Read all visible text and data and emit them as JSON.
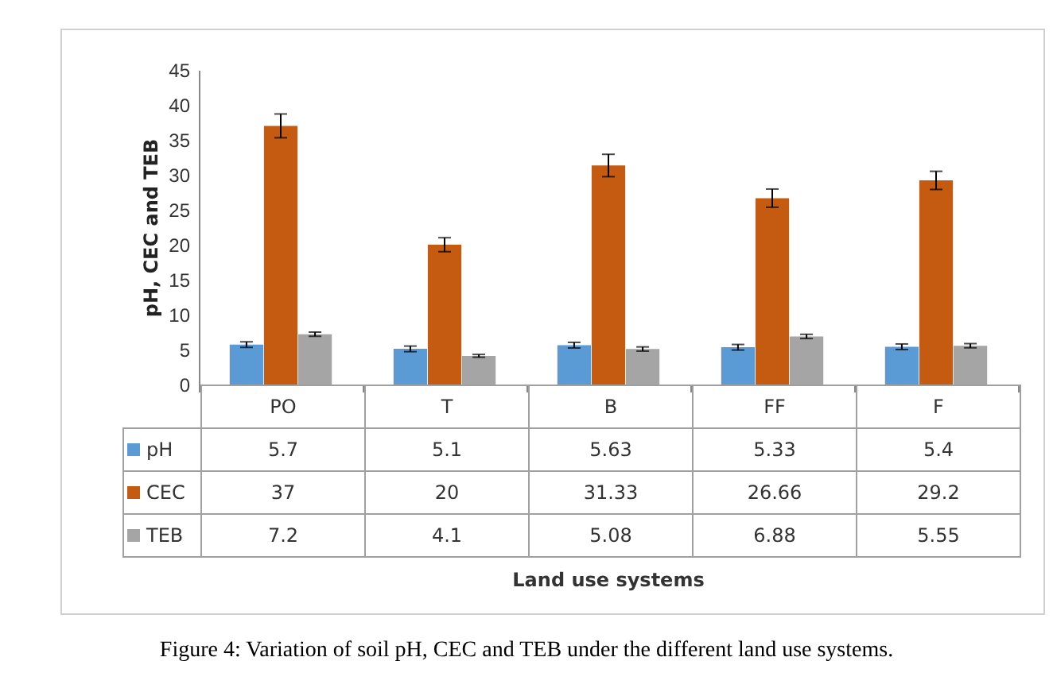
{
  "chart_data": {
    "type": "bar",
    "ylabel": "pH, CEC and TEB",
    "categories": [
      "PO",
      "T",
      "B",
      "FF",
      "F"
    ],
    "series": [
      {
        "name": "pH",
        "color": "#5b9bd5",
        "values": [
          5.7,
          5.1,
          5.63,
          5.33,
          5.4
        ],
        "errors": [
          0.4,
          0.4,
          0.4,
          0.4,
          0.4
        ]
      },
      {
        "name": "CEC",
        "color": "#c55a11",
        "values": [
          37,
          20,
          31.33,
          26.66,
          29.2
        ],
        "errors": [
          1.7,
          1.0,
          1.6,
          1.3,
          1.3
        ]
      },
      {
        "name": "TEB",
        "color": "#a5a5a5",
        "values": [
          7.2,
          4.1,
          5.08,
          6.88,
          5.55
        ],
        "errors": [
          0.3,
          0.2,
          0.3,
          0.3,
          0.3
        ]
      }
    ],
    "legend": "left",
    "ylim": [
      0,
      45
    ],
    "yticks": [
      0,
      5,
      10,
      15,
      20,
      25,
      30,
      35,
      40,
      45
    ],
    "data_labels": true,
    "annotations": [
      "Land use systems",
      "Figure 4: Variation of soil pH, CEC and TEB under the different land use systems."
    ]
  }
}
